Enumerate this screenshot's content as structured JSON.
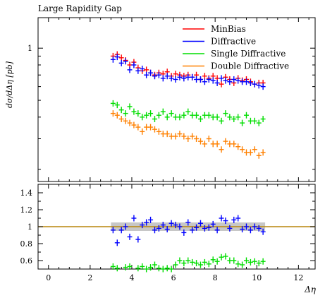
{
  "chart_data": [
    {
      "type": "scatter",
      "title": "Large Rapidity Gap",
      "ylabel": "dσ/dΔη [pb]",
      "ylim": [
        0.17,
        1.5
      ],
      "y_log": true,
      "yticks": [
        "1"
      ],
      "legend_position": "top-right",
      "colors": {
        "MinBias": "#ff0000",
        "Diffractive": "#0000ff",
        "Single Diffractive": "#00dd00",
        "Double Diffractive": "#ff8000"
      },
      "x": [
        3.1,
        3.3,
        3.5,
        3.7,
        3.9,
        4.1,
        4.3,
        4.5,
        4.7,
        4.9,
        5.1,
        5.3,
        5.5,
        5.7,
        5.9,
        6.1,
        6.3,
        6.5,
        6.7,
        6.9,
        7.1,
        7.3,
        7.5,
        7.7,
        7.9,
        8.1,
        8.3,
        8.5,
        8.7,
        8.9,
        9.1,
        9.3,
        9.5,
        9.7,
        9.9,
        10.1,
        10.3
      ],
      "series": [
        {
          "name": "MinBias",
          "values": [
            0.9,
            0.92,
            0.88,
            0.85,
            0.8,
            0.83,
            0.77,
            0.74,
            0.75,
            0.72,
            0.7,
            0.72,
            0.71,
            0.73,
            0.69,
            0.71,
            0.7,
            0.69,
            0.7,
            0.68,
            0.7,
            0.66,
            0.69,
            0.67,
            0.69,
            0.67,
            0.62,
            0.68,
            0.66,
            0.63,
            0.67,
            0.65,
            0.66,
            0.64,
            0.62,
            0.63,
            0.63
          ]
        },
        {
          "name": "Diffractive",
          "values": [
            0.86,
            0.89,
            0.82,
            0.84,
            0.75,
            0.8,
            0.74,
            0.76,
            0.7,
            0.72,
            0.69,
            0.7,
            0.67,
            0.69,
            0.67,
            0.66,
            0.68,
            0.67,
            0.68,
            0.68,
            0.66,
            0.66,
            0.64,
            0.66,
            0.65,
            0.63,
            0.67,
            0.65,
            0.64,
            0.66,
            0.65,
            0.64,
            0.64,
            0.63,
            0.62,
            0.61,
            0.6
          ]
        },
        {
          "name": "Single Diffractive",
          "values": [
            0.48,
            0.47,
            0.44,
            0.42,
            0.46,
            0.43,
            0.42,
            0.4,
            0.41,
            0.42,
            0.39,
            0.41,
            0.43,
            0.4,
            0.42,
            0.4,
            0.4,
            0.41,
            0.43,
            0.41,
            0.41,
            0.39,
            0.41,
            0.41,
            0.4,
            0.4,
            0.38,
            0.42,
            0.4,
            0.39,
            0.4,
            0.37,
            0.41,
            0.38,
            0.38,
            0.37,
            0.39
          ]
        },
        {
          "name": "Double Diffractive",
          "values": [
            0.42,
            0.41,
            0.39,
            0.38,
            0.37,
            0.36,
            0.35,
            0.33,
            0.35,
            0.35,
            0.34,
            0.33,
            0.32,
            0.32,
            0.31,
            0.31,
            0.32,
            0.31,
            0.3,
            0.31,
            0.3,
            0.29,
            0.28,
            0.3,
            0.28,
            0.28,
            0.26,
            0.29,
            0.28,
            0.28,
            0.27,
            0.26,
            0.25,
            0.25,
            0.26,
            0.24,
            0.25
          ]
        }
      ]
    },
    {
      "type": "scatter",
      "xlabel": "Δη",
      "xlim": [
        -0.5,
        12.8
      ],
      "xticks": [
        0,
        2,
        4,
        6,
        8,
        10,
        12
      ],
      "ylim": [
        0.5,
        1.5
      ],
      "yticks": [
        "0.6",
        "0.8",
        "1",
        "1.2",
        "1.4"
      ],
      "reference_line": {
        "y": 1.0,
        "color": "#b8860b"
      },
      "band": {
        "x_range": [
          3.0,
          10.4
        ],
        "y_range": [
          0.95,
          1.05
        ]
      },
      "x": [
        3.1,
        3.3,
        3.5,
        3.7,
        3.9,
        4.1,
        4.3,
        4.5,
        4.7,
        4.9,
        5.1,
        5.3,
        5.5,
        5.7,
        5.9,
        6.1,
        6.3,
        6.5,
        6.7,
        6.9,
        7.1,
        7.3,
        7.5,
        7.7,
        7.9,
        8.1,
        8.3,
        8.5,
        8.7,
        8.9,
        9.1,
        9.3,
        9.5,
        9.7,
        9.9,
        10.1,
        10.3
      ],
      "series": [
        {
          "name": "Diffractive",
          "values": [
            0.96,
            0.81,
            0.96,
            1.0,
            0.88,
            1.1,
            0.85,
            1.02,
            1.05,
            1.08,
            0.96,
            0.98,
            1.02,
            0.97,
            1.04,
            1.02,
            1.0,
            0.93,
            1.05,
            0.96,
            0.99,
            1.04,
            0.98,
            0.99,
            1.03,
            0.96,
            1.1,
            1.07,
            0.98,
            1.08,
            1.1,
            0.97,
            1.0,
            0.96,
            1.0,
            0.98,
            0.94
          ]
        },
        {
          "name": "Single Diffractive",
          "values": [
            0.53,
            0.51,
            0.49,
            0.52,
            0.53,
            0.49,
            0.51,
            0.53,
            0.5,
            0.52,
            0.55,
            0.51,
            0.5,
            0.51,
            0.5,
            0.55,
            0.6,
            0.57,
            0.6,
            0.58,
            0.57,
            0.55,
            0.58,
            0.56,
            0.61,
            0.59,
            0.64,
            0.65,
            0.6,
            0.6,
            0.56,
            0.55,
            0.6,
            0.58,
            0.59,
            0.57,
            0.59
          ]
        }
      ]
    }
  ]
}
